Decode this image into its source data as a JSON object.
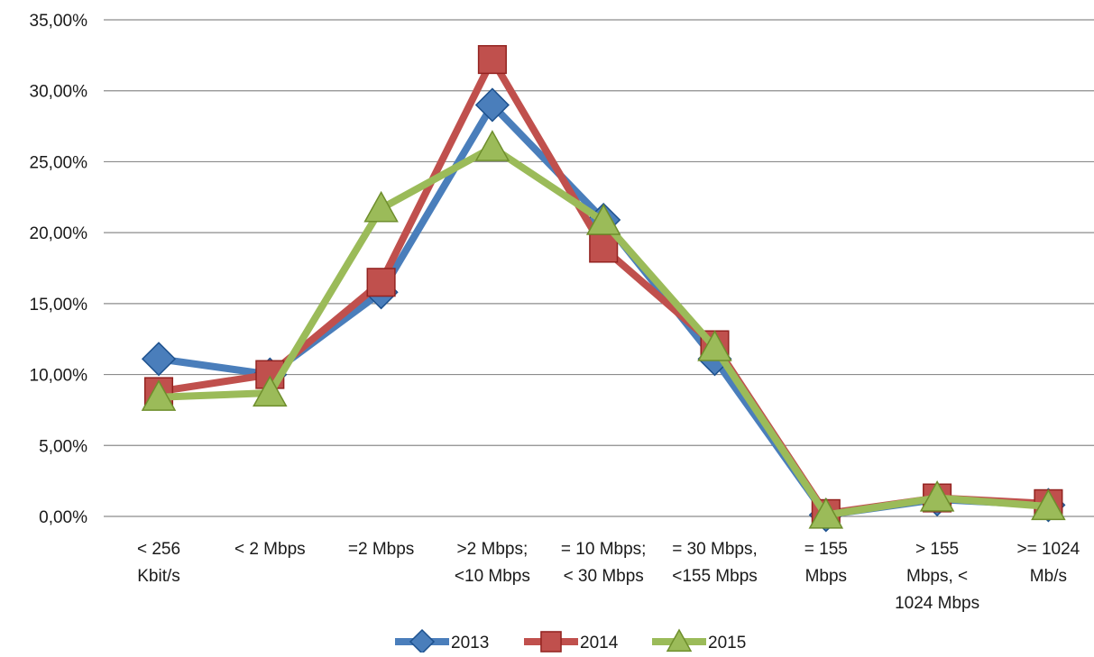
{
  "chart_data": {
    "type": "line",
    "categories": [
      [
        "< 256",
        "Kbit/s"
      ],
      [
        "< 2 Mbps"
      ],
      [
        "=2 Mbps"
      ],
      [
        ">2 Mbps;",
        "<10 Mbps"
      ],
      [
        "= 10 Mbps;",
        "< 30 Mbps"
      ],
      [
        "= 30 Mbps,",
        "<155 Mbps"
      ],
      [
        "= 155",
        "Mbps"
      ],
      [
        "> 155",
        "Mbps, <",
        "1024 Mbps"
      ],
      [
        ">= 1024",
        "Mb/s"
      ]
    ],
    "series": [
      {
        "name": "2013",
        "marker": "diamond",
        "color": "#4a7ebb",
        "values": [
          11.1,
          10.0,
          15.8,
          29.0,
          20.9,
          11.1,
          0.1,
          1.2,
          0.8
        ]
      },
      {
        "name": "2014",
        "marker": "square",
        "color": "#c0504d",
        "values": [
          8.8,
          10.0,
          16.5,
          32.2,
          18.9,
          12.1,
          0.2,
          1.3,
          0.9
        ]
      },
      {
        "name": "2015",
        "marker": "triangle",
        "color": "#9bbb59",
        "values": [
          8.4,
          8.7,
          21.7,
          26.0,
          20.8,
          11.9,
          0.1,
          1.3,
          0.7
        ]
      }
    ],
    "ylim": [
      0,
      35
    ],
    "yticks": [
      0,
      5,
      10,
      15,
      20,
      25,
      30,
      35
    ],
    "ytick_labels": [
      "0,00%",
      "5,00%",
      "10,00%",
      "15,00%",
      "20,00%",
      "25,00%",
      "30,00%",
      "35,00%"
    ],
    "grid": true,
    "legend_position": "bottom",
    "title": "",
    "xlabel": "",
    "ylabel": ""
  }
}
